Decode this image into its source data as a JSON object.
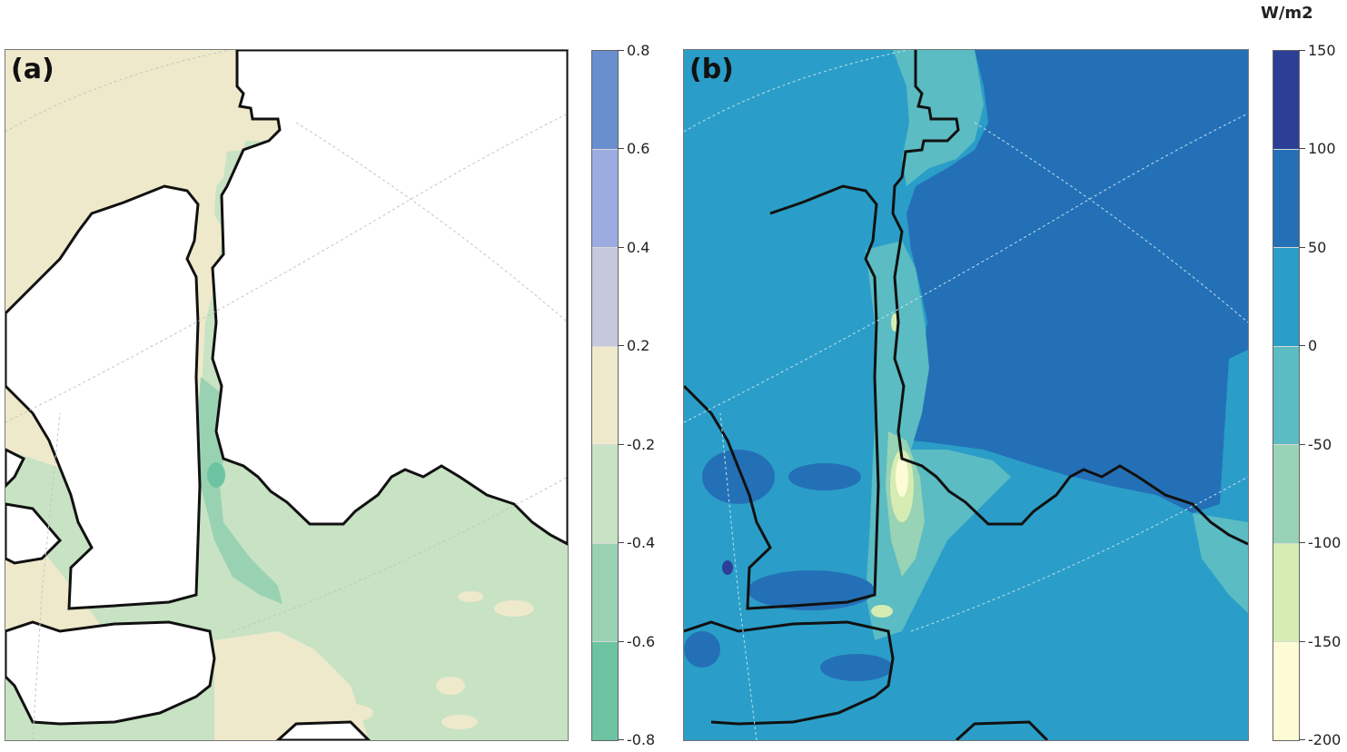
{
  "panels": {
    "a": {
      "label": "(a)"
    },
    "b": {
      "label": "(b)"
    }
  },
  "colorbar_a": {
    "levels_top_to_bottom": [
      0.8,
      0.6,
      0.4,
      0.2,
      -0.2,
      -0.4,
      -0.6,
      -0.8
    ],
    "tick_labels": [
      "0.8",
      "0.6",
      "0.4",
      "0.2",
      "-0.2",
      "-0.4",
      "-0.6",
      "-0.8"
    ],
    "colors_top_to_bottom": [
      "#6a8fcf",
      "#9dace0",
      "#c6c8dc",
      "#efe9cb",
      "#c8e2c4",
      "#99d2b3",
      "#6cc3a1"
    ]
  },
  "colorbar_b": {
    "units": "W/m2",
    "levels_top_to_bottom": [
      150,
      100,
      50,
      0,
      -50,
      -100,
      -150,
      -200
    ],
    "tick_labels": [
      "150",
      "100",
      "50",
      "0",
      "-50",
      "-100",
      "-150",
      "-200"
    ],
    "colors_top_to_bottom": [
      "#2b3f97",
      "#2470b7",
      "#2a9ec8",
      "#5bbcc3",
      "#97d3b4",
      "#d6ecb3",
      "#fdfbd5"
    ]
  },
  "colors": {
    "land_a": "#ffffff",
    "ocean_a_base": "#c8e2c4",
    "coast": "#111111",
    "graticule": "#c4c4c4",
    "field_b_base": "#2a9ec8"
  }
}
